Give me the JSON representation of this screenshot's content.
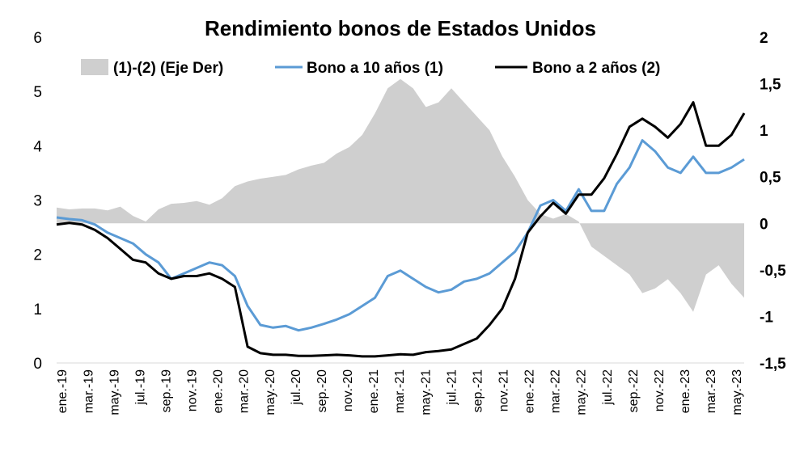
{
  "chart_data": {
    "type": "line",
    "title": "Rendimiento bonos de Estados Unidos",
    "legend_position": "top",
    "grid": false,
    "colors": {
      "spread": "#cfcfcf",
      "ten_year": "#5b9bd5",
      "two_year": "#000000"
    },
    "y_left": {
      "min": 0,
      "max": 6,
      "ticks": [
        "0",
        "1",
        "2",
        "3",
        "4",
        "5",
        "6"
      ]
    },
    "y_right": {
      "min": -1.5,
      "max": 2,
      "ticks": [
        "-1,5",
        "-1",
        "-0,5",
        "0",
        "0,5",
        "1",
        "1,5",
        "2"
      ]
    },
    "x_ticks": [
      "ene.-19",
      "mar.-19",
      "may.-19",
      "jul.-19",
      "sep.-19",
      "nov.-19",
      "ene.-20",
      "mar.-20",
      "may.-20",
      "jul.-20",
      "sep.-20",
      "nov.-20",
      "ene.-21",
      "mar.-21",
      "may.-21",
      "jul.-21",
      "sep.-21",
      "nov.-21",
      "ene.-22",
      "mar.-22",
      "may.-22",
      "jul.-22",
      "sep.-22",
      "nov.-22",
      "ene.-23",
      "mar.-23",
      "may.-23"
    ],
    "series": [
      {
        "key": "spread",
        "name": "(1)-(2) (Eje Der)",
        "kind": "area",
        "axis": "right",
        "values": [
          0.17,
          0.15,
          0.16,
          0.16,
          0.14,
          0.18,
          0.08,
          0.02,
          0.15,
          0.21,
          0.22,
          0.24,
          0.2,
          0.27,
          0.4,
          0.45,
          0.48,
          0.5,
          0.52,
          0.58,
          0.62,
          0.65,
          0.75,
          0.82,
          0.95,
          1.18,
          1.45,
          1.55,
          1.45,
          1.25,
          1.3,
          1.45,
          1.3,
          1.15,
          1.0,
          0.72,
          0.5,
          0.25,
          0.1,
          0.05,
          0.1,
          0.02,
          -0.25,
          -0.35,
          -0.45,
          -0.55,
          -0.75,
          -0.7,
          -0.6,
          -0.75,
          -0.95,
          -0.55,
          -0.45,
          -0.65,
          -0.8
        ]
      },
      {
        "key": "ten_year",
        "name": "Bono a 10 años (1)",
        "kind": "line",
        "axis": "left",
        "values": [
          2.68,
          2.65,
          2.63,
          2.55,
          2.4,
          2.3,
          2.2,
          2.0,
          1.85,
          1.55,
          1.65,
          1.75,
          1.85,
          1.8,
          1.6,
          1.05,
          0.7,
          0.65,
          0.68,
          0.6,
          0.65,
          0.72,
          0.8,
          0.9,
          1.05,
          1.2,
          1.6,
          1.7,
          1.55,
          1.4,
          1.3,
          1.35,
          1.5,
          1.55,
          1.65,
          1.85,
          2.05,
          2.4,
          2.9,
          3.0,
          2.8,
          3.2,
          2.8,
          2.8,
          3.3,
          3.6,
          4.1,
          3.9,
          3.6,
          3.5,
          3.8,
          3.5,
          3.5,
          3.6,
          3.75
        ]
      },
      {
        "key": "two_year",
        "name": "Bono a 2 años (2)",
        "kind": "line",
        "axis": "left",
        "values": [
          2.55,
          2.58,
          2.55,
          2.45,
          2.3,
          2.1,
          1.9,
          1.85,
          1.65,
          1.55,
          1.6,
          1.6,
          1.65,
          1.55,
          1.4,
          0.3,
          0.18,
          0.15,
          0.15,
          0.13,
          0.13,
          0.14,
          0.15,
          0.14,
          0.12,
          0.12,
          0.14,
          0.16,
          0.15,
          0.2,
          0.22,
          0.25,
          0.35,
          0.45,
          0.7,
          1.0,
          1.55,
          2.4,
          2.7,
          2.95,
          2.75,
          3.1,
          3.1,
          3.4,
          3.85,
          4.35,
          4.5,
          4.35,
          4.15,
          4.4,
          4.8,
          4.0,
          4.0,
          4.2,
          4.6
        ]
      }
    ]
  }
}
